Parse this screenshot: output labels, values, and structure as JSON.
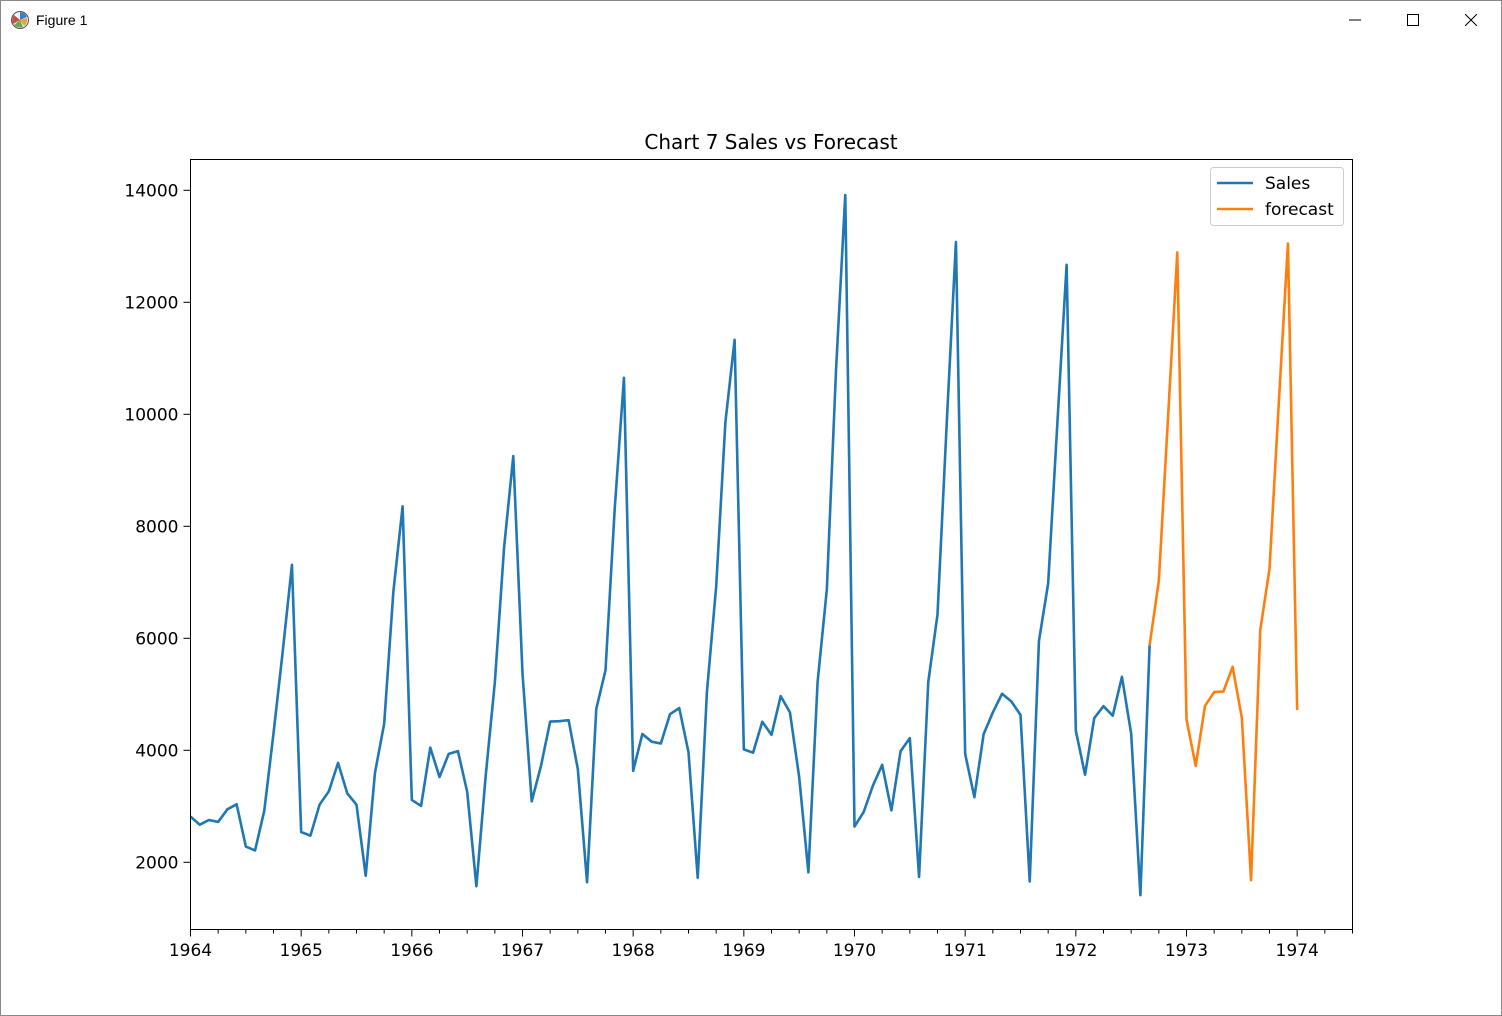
{
  "window": {
    "title": "Figure 1"
  },
  "icons": {
    "app": "matplotlib-figure-icon",
    "minimize": "minimize-icon",
    "maximize": "maximize-icon",
    "close": "close-icon"
  },
  "chart_data": {
    "type": "line",
    "title": "Chart 7 Sales vs Forecast",
    "xlabel": "",
    "ylabel": "",
    "xlim": [
      "1964-01",
      "1974-07"
    ],
    "ylim": [
      800,
      14550
    ],
    "x_ticks": [
      "1964",
      "1965",
      "1966",
      "1967",
      "1968",
      "1969",
      "1970",
      "1971",
      "1972",
      "1973",
      "1974"
    ],
    "y_ticks": [
      2000,
      4000,
      6000,
      8000,
      10000,
      12000,
      14000
    ],
    "grid": false,
    "legend": {
      "position": "top-right",
      "entries": [
        "Sales",
        "forecast"
      ]
    },
    "series": [
      {
        "name": "Sales",
        "color": "#1f77b4",
        "start": "1964-01",
        "values": [
          2815,
          2672,
          2755,
          2721,
          2946,
          3036,
          2282,
          2212,
          2922,
          4301,
          5764,
          7312,
          2541,
          2475,
          3031,
          3266,
          3776,
          3230,
          3028,
          1759,
          3595,
          4474,
          6838,
          8357,
          3113,
          3006,
          4047,
          3523,
          3937,
          3986,
          3260,
          1573,
          3528,
          5211,
          7614,
          9254,
          5375,
          3088,
          3718,
          4514,
          4520,
          4539,
          3663,
          1643,
          4739,
          5428,
          8314,
          10651,
          3633,
          4292,
          4154,
          4121,
          4647,
          4753,
          3965,
          1723,
          5048,
          6922,
          9858,
          11331,
          4016,
          3957,
          4510,
          4276,
          4968,
          4677,
          3523,
          1821,
          5222,
          6872,
          10803,
          13916,
          2639,
          2899,
          3370,
          3740,
          2927,
          3986,
          4217,
          1738,
          5221,
          6424,
          9842,
          13076,
          3934,
          3162,
          4286,
          4676,
          5010,
          4874,
          4633,
          1659,
          5951,
          6981,
          9851,
          12670,
          4348,
          3564,
          4577,
          4788,
          4618,
          5312,
          4298,
          1413,
          5877
        ]
      },
      {
        "name": "forecast",
        "color": "#ff7f0e",
        "start": "1972-09",
        "values": [
          5877,
          7026,
          9950,
          12890,
          4550,
          3720,
          4790,
          5040,
          5050,
          5490,
          4580,
          1680,
          6150,
          7240,
          10180,
          13050,
          4720
        ]
      }
    ]
  }
}
